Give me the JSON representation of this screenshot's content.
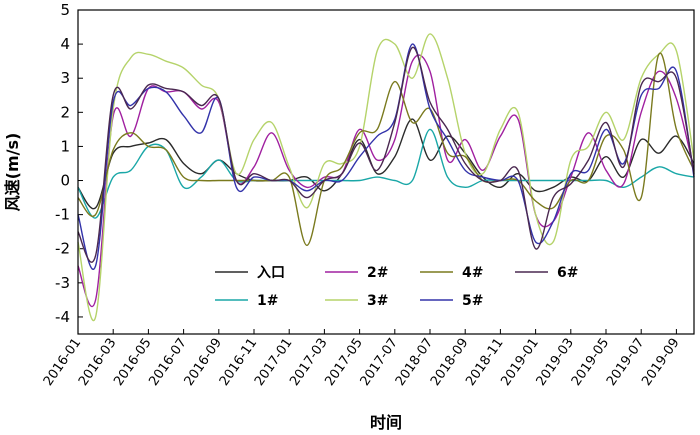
{
  "chart_data": {
    "type": "line",
    "xlabel": "时间",
    "ylabel": "风速(m/s)",
    "ylim": [
      -4.5,
      5
    ],
    "yticks": [
      -4,
      -3,
      -2,
      -1,
      0,
      1,
      2,
      3,
      4,
      5
    ],
    "x": [
      "2016-01",
      "2016-02",
      "2016-03",
      "2016-04",
      "2016-05",
      "2016-06",
      "2016-07",
      "2016-08",
      "2016-09",
      "2016-10",
      "2016-11",
      "2016-12",
      "2017-01",
      "2017-02",
      "2017-03",
      "2017-04",
      "2017-05",
      "2017-06",
      "2017-07",
      "2017-08",
      "2018-07",
      "2018-08",
      "2018-09",
      "2018-10",
      "2018-11",
      "2018-12",
      "2019-01",
      "2019-02",
      "2019-03",
      "2019-04",
      "2019-05",
      "2019-06",
      "2019-07",
      "2019-08",
      "2019-09",
      "2019-10"
    ],
    "xticks": [
      "2016-01",
      "2016-03",
      "2016-05",
      "2016-07",
      "2016-09",
      "2016-11",
      "2017-01",
      "2017-03",
      "2017-05",
      "2017-07",
      "2018-07",
      "2018-09",
      "2018-11",
      "2019-01",
      "2019-03",
      "2019-05",
      "2019-07",
      "2019-09"
    ],
    "legend_placement": "lower-right",
    "grid": false,
    "series": [
      {
        "name": "入口",
        "color": "#2b2b2b",
        "values": [
          -0.2,
          -0.8,
          0.8,
          1.0,
          1.1,
          1.2,
          0.5,
          0.2,
          0.6,
          0.2,
          0.0,
          0.0,
          0.0,
          0.1,
          -0.3,
          0.2,
          1.2,
          0.2,
          0.7,
          1.8,
          0.6,
          1.3,
          0.8,
          0.1,
          -0.2,
          0.2,
          -0.3,
          -0.2,
          0.1,
          0.0,
          0.7,
          0.1,
          1.2,
          0.8,
          1.3,
          0.5
        ]
      },
      {
        "name": "1#",
        "color": "#1aa7a7",
        "values": [
          -0.2,
          -1.1,
          0.1,
          0.3,
          1.0,
          0.9,
          -0.2,
          0.1,
          0.6,
          0.0,
          0.0,
          0.0,
          0.0,
          0.0,
          0.0,
          0.0,
          0.0,
          0.1,
          0.0,
          0.0,
          1.5,
          0.1,
          -0.2,
          0.0,
          0.0,
          0.0,
          0.0,
          0.0,
          0.0,
          0.0,
          0.0,
          -0.2,
          0.1,
          0.4,
          0.2,
          0.1
        ]
      },
      {
        "name": "2#",
        "color": "#a020a0",
        "values": [
          -2.5,
          -3.5,
          1.9,
          1.3,
          2.7,
          2.6,
          2.6,
          2.1,
          2.3,
          0.0,
          0.4,
          1.4,
          0.3,
          -0.2,
          0.1,
          0.2,
          1.5,
          0.6,
          1.2,
          3.5,
          3.2,
          0.6,
          1.2,
          0.3,
          1.3,
          1.8,
          -1.0,
          -1.2,
          0.1,
          1.4,
          0.3,
          -0.1,
          2.0,
          3.2,
          2.4,
          0.3
        ]
      },
      {
        "name": "3#",
        "color": "#b5d36a",
        "values": [
          -1.8,
          -4.0,
          2.1,
          3.6,
          3.7,
          3.5,
          3.3,
          2.8,
          2.4,
          0.2,
          1.2,
          1.7,
          0.4,
          -0.8,
          0.5,
          0.5,
          1.0,
          3.8,
          4.0,
          3.0,
          4.3,
          3.0,
          0.8,
          0.2,
          1.5,
          2.0,
          -1.0,
          -1.8,
          0.6,
          1.0,
          2.0,
          1.2,
          3.0,
          3.7,
          3.8,
          0.6
        ]
      },
      {
        "name": "4#",
        "color": "#7a7a1e",
        "values": [
          -0.5,
          -1.0,
          0.9,
          1.4,
          1.0,
          0.9,
          0.1,
          0.0,
          0.0,
          0.0,
          0.0,
          0.0,
          0.1,
          -1.9,
          0.0,
          0.4,
          1.4,
          1.5,
          2.9,
          1.7,
          2.1,
          0.8,
          0.7,
          0.0,
          0.0,
          0.0,
          -0.6,
          -0.8,
          0.0,
          0.0,
          1.3,
          0.9,
          -0.5,
          3.7,
          1.5,
          0.3
        ]
      },
      {
        "name": "5#",
        "color": "#3333aa",
        "values": [
          -1.0,
          -2.5,
          2.3,
          2.2,
          2.7,
          2.6,
          1.9,
          1.4,
          2.4,
          -0.2,
          0.1,
          0.0,
          0.0,
          -0.3,
          0.0,
          0.0,
          0.7,
          1.3,
          1.8,
          4.0,
          2.1,
          1.2,
          0.3,
          0.1,
          0.0,
          0.0,
          -1.8,
          -1.2,
          0.2,
          0.3,
          1.5,
          0.5,
          2.5,
          2.7,
          3.2,
          0.1
        ]
      },
      {
        "name": "6#",
        "color": "#4a2850",
        "values": [
          -1.5,
          -2.2,
          2.5,
          2.1,
          2.8,
          2.7,
          2.6,
          2.2,
          2.4,
          0.0,
          0.2,
          0.0,
          0.0,
          -0.5,
          0.0,
          0.2,
          1.1,
          0.3,
          1.7,
          3.9,
          2.3,
          1.5,
          0.5,
          0.0,
          0.0,
          0.3,
          -2.0,
          -0.5,
          -0.1,
          0.6,
          1.7,
          0.4,
          2.8,
          2.9,
          3.0,
          0.2
        ]
      }
    ]
  }
}
